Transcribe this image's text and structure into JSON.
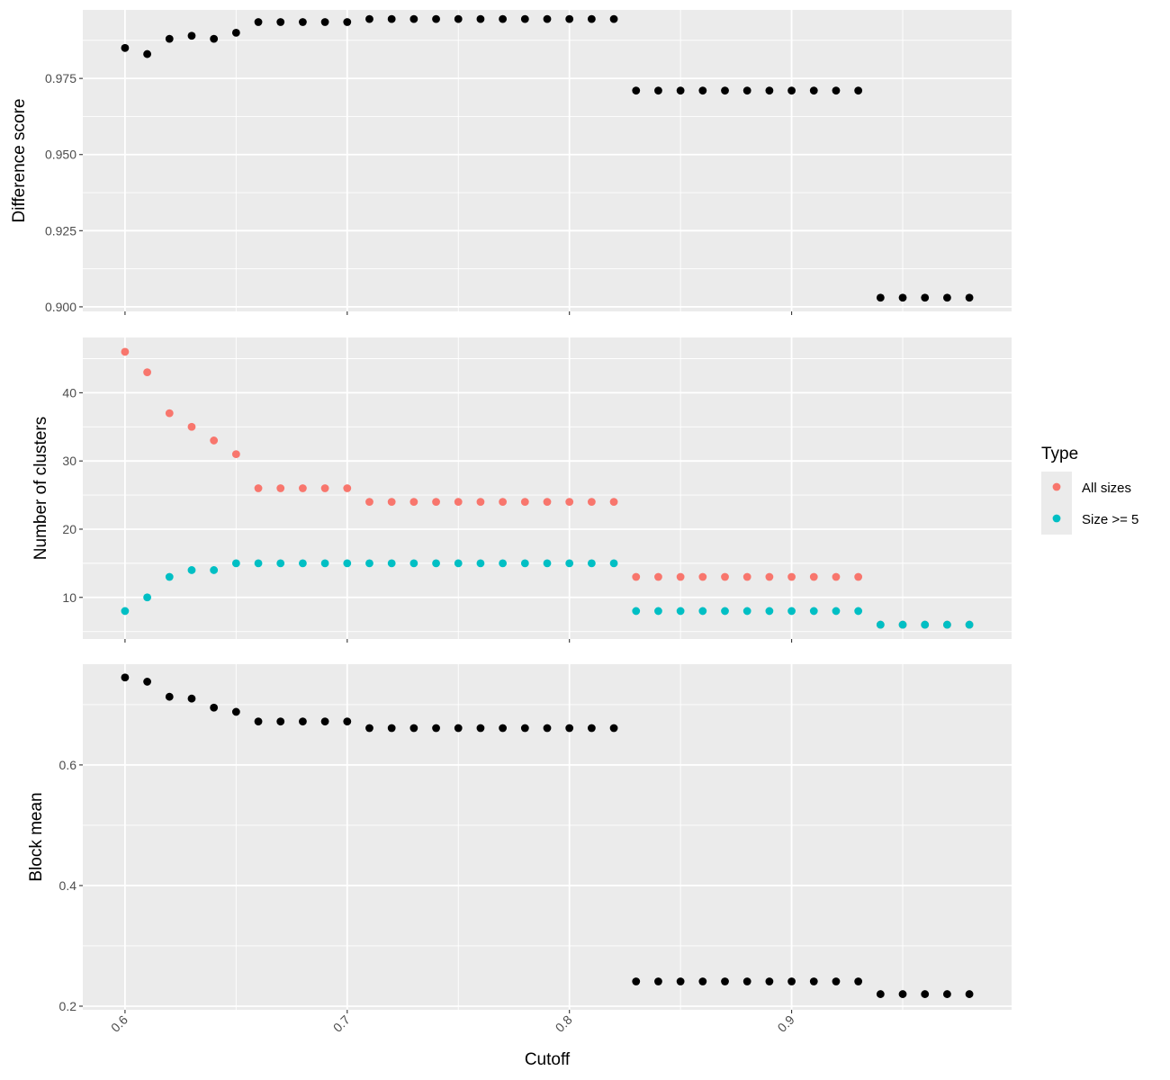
{
  "chart_data": {
    "type": "scatter",
    "xlabel": "Cutoff",
    "xlim": [
      0.581,
      0.999
    ],
    "xticks": [
      0.6,
      0.7,
      0.8,
      0.9
    ],
    "xtick_labels": [
      "0.6",
      "0.7",
      "0.8",
      "0.9"
    ],
    "x": [
      0.6,
      0.61,
      0.62,
      0.63,
      0.64,
      0.65,
      0.66,
      0.67,
      0.68,
      0.69,
      0.7,
      0.71,
      0.72,
      0.73,
      0.74,
      0.75,
      0.76,
      0.77,
      0.78,
      0.79,
      0.8,
      0.81,
      0.82,
      0.83,
      0.84,
      0.85,
      0.86,
      0.87,
      0.88,
      0.89,
      0.9,
      0.91,
      0.92,
      0.93,
      0.94,
      0.95,
      0.96,
      0.97,
      0.98
    ],
    "grid": true,
    "legend": {
      "title": "Type",
      "position": "right",
      "entries": [
        {
          "label": "All sizes",
          "color": "#F8766D"
        },
        {
          "label": "Size >= 5",
          "color": "#00BFC4"
        }
      ]
    },
    "panels": [
      {
        "ylabel": "Difference score",
        "ylim": [
          0.8985,
          0.9975
        ],
        "yticks": [
          0.9,
          0.925,
          0.95,
          0.975
        ],
        "ytick_labels": [
          "0.900",
          "0.925",
          "0.950",
          "0.975"
        ],
        "series": [
          {
            "color": "#000000",
            "values": [
              0.985,
              0.983,
              0.988,
              0.989,
              0.988,
              0.99,
              0.9935,
              0.9935,
              0.9935,
              0.9935,
              0.9935,
              0.9945,
              0.9945,
              0.9945,
              0.9945,
              0.9945,
              0.9945,
              0.9945,
              0.9945,
              0.9945,
              0.9945,
              0.9945,
              0.9945,
              0.971,
              0.971,
              0.971,
              0.971,
              0.971,
              0.971,
              0.971,
              0.971,
              0.971,
              0.971,
              0.971,
              0.903,
              0.903,
              0.903,
              0.903,
              0.903
            ]
          }
        ]
      },
      {
        "ylabel": "Number of clusters",
        "ylim": [
          3.9,
          48.1
        ],
        "yticks": [
          10,
          20,
          30,
          40
        ],
        "ytick_labels": [
          "10",
          "20",
          "30",
          "40"
        ],
        "series": [
          {
            "name": "All sizes",
            "color": "#F8766D",
            "values": [
              46,
              43,
              37,
              35,
              33,
              31,
              26,
              26,
              26,
              26,
              26,
              24,
              24,
              24,
              24,
              24,
              24,
              24,
              24,
              24,
              24,
              24,
              24,
              13,
              13,
              13,
              13,
              13,
              13,
              13,
              13,
              13,
              13,
              13,
              6,
              6,
              6,
              6,
              6
            ]
          },
          {
            "name": "Size >= 5",
            "color": "#00BFC4",
            "values": [
              8,
              10,
              13,
              14,
              14,
              15,
              15,
              15,
              15,
              15,
              15,
              15,
              15,
              15,
              15,
              15,
              15,
              15,
              15,
              15,
              15,
              15,
              15,
              8,
              8,
              8,
              8,
              8,
              8,
              8,
              8,
              8,
              8,
              8,
              6,
              6,
              6,
              6,
              6
            ]
          }
        ]
      },
      {
        "ylabel": "Block mean",
        "ylim": [
          0.194,
          0.767
        ],
        "yticks": [
          0.2,
          0.4,
          0.6
        ],
        "ytick_labels": [
          "0.2",
          "0.4",
          "0.6"
        ],
        "series": [
          {
            "color": "#000000",
            "values": [
              0.745,
              0.738,
              0.713,
              0.71,
              0.695,
              0.688,
              0.672,
              0.672,
              0.672,
              0.672,
              0.672,
              0.661,
              0.661,
              0.661,
              0.661,
              0.661,
              0.661,
              0.661,
              0.661,
              0.661,
              0.661,
              0.661,
              0.661,
              0.241,
              0.241,
              0.241,
              0.241,
              0.241,
              0.241,
              0.241,
              0.241,
              0.241,
              0.241,
              0.241,
              0.22,
              0.22,
              0.22,
              0.22,
              0.22
            ]
          }
        ]
      }
    ]
  }
}
